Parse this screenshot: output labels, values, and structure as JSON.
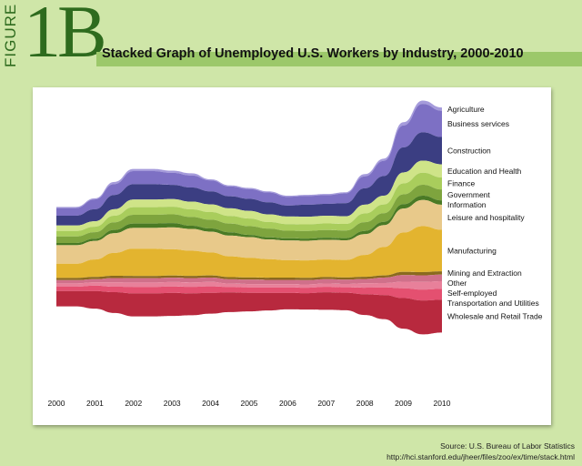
{
  "figure": {
    "word": "FIGURE",
    "number": "1B"
  },
  "title": "Stacked Graph of Unemployed U.S. Workers by Industry, 2000-2010",
  "source": {
    "line1": "Source: U.S. Bureau of Labor Statistics",
    "line2": "http://hci.stanford.edu/jheer/files/zoo/ex/time/stack.html"
  },
  "colors": {
    "background": "#cfe6a8",
    "figure_green": "#2e6b1e",
    "title_bar": "#9cc86a"
  },
  "chart_data": {
    "type": "area",
    "layout": "stream",
    "title": "Stacked Graph of Unemployed U.S. Workers by Industry, 2000-2010",
    "x": [
      2000,
      2000.5,
      2001,
      2001.5,
      2002,
      2002.5,
      2003,
      2003.5,
      2004,
      2004.5,
      2005,
      2005.5,
      2006,
      2006.5,
      2007,
      2007.5,
      2008,
      2008.5,
      2009,
      2009.5,
      2010
    ],
    "x_ticks": [
      "2000",
      "2001",
      "2002",
      "2003",
      "2004",
      "2005",
      "2006",
      "2007",
      "2008",
      "2009",
      "2010"
    ],
    "xlim": [
      2000,
      2010
    ],
    "series": [
      {
        "name": "Agriculture",
        "color": "#a59bdb",
        "values": [
          1,
          1,
          1,
          2,
          2,
          2,
          2,
          2,
          1,
          1,
          1,
          1,
          1,
          1,
          1,
          1,
          2,
          2,
          3,
          3,
          3
        ]
      },
      {
        "name": "Business services",
        "color": "#7d70c4",
        "values": [
          7,
          7,
          9,
          10,
          12,
          12,
          11,
          11,
          10,
          9,
          9,
          9,
          8,
          8,
          8,
          9,
          11,
          14,
          20,
          26,
          24
        ]
      },
      {
        "name": "Construction",
        "color": "#3b3e82",
        "values": [
          9,
          9,
          11,
          13,
          14,
          14,
          13,
          13,
          12,
          11,
          11,
          11,
          10,
          11,
          11,
          12,
          15,
          18,
          23,
          26,
          25
        ]
      },
      {
        "name": "Education and Health",
        "color": "#cfe488",
        "values": [
          5,
          5,
          5,
          6,
          7,
          7,
          7,
          7,
          7,
          7,
          7,
          7,
          7,
          7,
          7,
          7,
          8,
          8,
          10,
          11,
          12
        ]
      },
      {
        "name": "Finance",
        "color": "#a9cd5c",
        "values": [
          5,
          5,
          5,
          6,
          7,
          7,
          7,
          7,
          7,
          7,
          7,
          6,
          6,
          6,
          6,
          6,
          8,
          8,
          10,
          11,
          11
        ]
      },
      {
        "name": "Government",
        "color": "#7ea43e",
        "values": [
          6,
          6,
          6,
          7,
          8,
          8,
          8,
          8,
          8,
          8,
          8,
          8,
          7,
          7,
          7,
          7,
          8,
          8,
          9,
          10,
          10
        ]
      },
      {
        "name": "Information",
        "color": "#4a7a25",
        "values": [
          2,
          2,
          2,
          3,
          4,
          4,
          4,
          3,
          3,
          3,
          2,
          2,
          2,
          2,
          2,
          2,
          3,
          3,
          4,
          4,
          4
        ]
      },
      {
        "name": "Leisure and hospitality",
        "color": "#e8c98a",
        "values": [
          17,
          17,
          17,
          18,
          19,
          19,
          20,
          20,
          19,
          19,
          19,
          18,
          18,
          18,
          18,
          18,
          19,
          20,
          22,
          24,
          23
        ]
      },
      {
        "name": "Manufacturing",
        "color": "#e3b42f",
        "values": [
          13,
          13,
          16,
          21,
          25,
          25,
          24,
          23,
          21,
          19,
          18,
          17,
          16,
          16,
          16,
          16,
          20,
          26,
          36,
          42,
          38
        ]
      },
      {
        "name": "Mining and Extraction",
        "color": "#8a6a1e",
        "values": [
          2,
          2,
          2,
          2,
          2,
          2,
          2,
          2,
          2,
          2,
          2,
          2,
          2,
          2,
          2,
          2,
          2,
          2,
          3,
          3,
          3
        ]
      },
      {
        "name": "Other",
        "color": "#d0708a",
        "values": [
          3,
          3,
          3,
          4,
          4,
          4,
          4,
          4,
          4,
          4,
          4,
          4,
          4,
          4,
          4,
          4,
          4,
          5,
          6,
          6,
          6
        ]
      },
      {
        "name": "Self-employed",
        "color": "#e8809a",
        "values": [
          3,
          3,
          3,
          4,
          4,
          4,
          4,
          4,
          4,
          3,
          3,
          3,
          3,
          3,
          3,
          3,
          4,
          4,
          6,
          7,
          7
        ]
      },
      {
        "name": "Transportation and Utilities",
        "color": "#e45070",
        "values": [
          4,
          4,
          5,
          5,
          6,
          6,
          6,
          6,
          6,
          5,
          5,
          5,
          5,
          5,
          5,
          5,
          6,
          7,
          9,
          10,
          10
        ]
      },
      {
        "name": "Wholesale and Retail Trade",
        "color": "#b8293e",
        "values": [
          14,
          14,
          16,
          19,
          21,
          21,
          21,
          20,
          19,
          18,
          17,
          16,
          15,
          15,
          16,
          16,
          19,
          22,
          28,
          31,
          30
        ]
      }
    ]
  }
}
